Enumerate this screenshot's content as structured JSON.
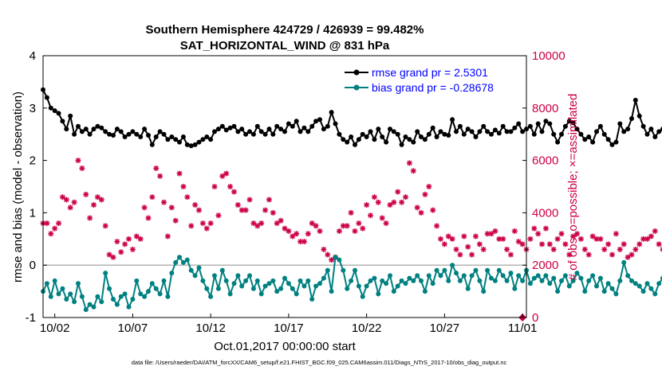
{
  "chart_data": {
    "type": "line",
    "title": "Southern Hemisphere 424729 / 426939 = 99.482%",
    "subtitle": "SAT_HORIZONTAL_WIND @ 831 hPa",
    "xlabel": "Oct.01,2017 00:00:00 start",
    "ylabel_left": "rmse and bias (model - observation)",
    "ylabel_right": "# of obs: o=possible; ×=assimilated",
    "footer": "data file: /Users/raeder/DAI/ATM_forcXX/CAM6_setup/f.e21.FHIST_BGC.f09_025.CAM6assim.011/Diags_NTrS_2017-10/obs_diag_output.nc",
    "x_tick_labels": [
      "10/02",
      "10/07",
      "10/12",
      "10/17",
      "10/22",
      "10/27",
      "11/01"
    ],
    "x_tick_days": [
      2,
      7,
      12,
      17,
      22,
      27,
      32
    ],
    "x_range_days": [
      1.25,
      32.25
    ],
    "y_left_range": [
      -1,
      4
    ],
    "y_left_ticks": [
      "-1",
      "0",
      "1",
      "2",
      "3",
      "4"
    ],
    "y_right_range": [
      0,
      10000
    ],
    "y_right_ticks": [
      "0",
      "2000",
      "4000",
      "6000",
      "8000",
      "10000"
    ],
    "reference_line_y": 0,
    "legend": {
      "placement": "top-right",
      "entries": [
        {
          "label": "rmse grand pr = 2.5301",
          "color": "#000000",
          "marker": "circle"
        },
        {
          "label": "bias grand pr = -0.28678",
          "color": "#008080",
          "marker": "circle"
        }
      ]
    },
    "colors": {
      "rmse": "#000000",
      "bias": "#008080",
      "obs": "#cc0044",
      "zero_line": "#b3b3b3",
      "legend_text": "#0000ff",
      "right_axis": "#cc0044"
    },
    "series": [
      {
        "name": "rmse grand pr = 2.5301",
        "axis": "left",
        "x_start_day": 1.25,
        "x_step_days": 0.25,
        "values": [
          3.35,
          3.2,
          3.0,
          2.95,
          2.9,
          2.75,
          2.6,
          2.85,
          2.5,
          2.65,
          2.55,
          2.6,
          2.5,
          2.6,
          2.65,
          2.62,
          2.55,
          2.5,
          2.48,
          2.6,
          2.55,
          2.45,
          2.5,
          2.55,
          2.5,
          2.45,
          2.6,
          2.48,
          2.3,
          2.45,
          2.55,
          2.5,
          2.4,
          2.45,
          2.4,
          2.35,
          2.45,
          2.3,
          2.28,
          2.3,
          2.35,
          2.4,
          2.45,
          2.4,
          2.55,
          2.6,
          2.65,
          2.58,
          2.62,
          2.65,
          2.55,
          2.6,
          2.5,
          2.55,
          2.5,
          2.65,
          2.55,
          2.5,
          2.6,
          2.5,
          2.65,
          2.6,
          2.55,
          2.7,
          2.65,
          2.75,
          2.55,
          2.62,
          2.55,
          2.65,
          2.75,
          2.78,
          2.6,
          2.65,
          2.92,
          2.7,
          2.5,
          2.4,
          2.35,
          2.45,
          2.3,
          2.4,
          2.5,
          2.45,
          2.55,
          2.4,
          2.6,
          2.45,
          2.35,
          2.6,
          2.55,
          2.5,
          2.3,
          2.45,
          2.4,
          2.35,
          2.55,
          2.45,
          2.4,
          2.5,
          2.62,
          2.45,
          2.55,
          2.5,
          2.48,
          2.78,
          2.55,
          2.65,
          2.5,
          2.6,
          2.55,
          2.45,
          2.55,
          2.65,
          2.55,
          2.5,
          2.58,
          2.52,
          2.65,
          2.55,
          2.55,
          2.62,
          2.7,
          2.55,
          2.6,
          2.65,
          2.5,
          2.7,
          2.55,
          2.75,
          2.7,
          2.5,
          2.35,
          2.5,
          2.65,
          2.75,
          2.72,
          2.6,
          2.5,
          2.4,
          2.45,
          2.35,
          2.55,
          2.65,
          2.5,
          2.4,
          2.3,
          2.35,
          2.7,
          2.55,
          2.6,
          2.8,
          3.15,
          2.85,
          2.65,
          2.5,
          2.6,
          2.45,
          2.55,
          2.6,
          2.55,
          2.4,
          2.5,
          2.6,
          2.45,
          2.65,
          2.5,
          2.55,
          2.7,
          2.55,
          2.5,
          2.6,
          2.5,
          2.8,
          2.6,
          2.65
        ]
      },
      {
        "name": "bias grand pr = -0.28678",
        "axis": "left",
        "x_start_day": 1.25,
        "x_step_days": 0.25,
        "values": [
          -0.5,
          -0.35,
          -0.6,
          -0.3,
          -0.55,
          -0.45,
          -0.65,
          -0.55,
          -0.7,
          -0.35,
          -0.6,
          -0.85,
          -0.75,
          -0.8,
          -0.6,
          -0.7,
          -0.15,
          -0.45,
          -0.65,
          -0.75,
          -0.6,
          -0.55,
          -0.8,
          -0.65,
          -0.3,
          -0.55,
          -0.6,
          -0.5,
          -0.35,
          -0.45,
          -0.55,
          -0.3,
          -0.6,
          -0.15,
          0.05,
          0.15,
          0.05,
          0.1,
          -0.1,
          -0.2,
          -0.05,
          -0.3,
          -0.45,
          -0.6,
          -0.2,
          -0.45,
          -0.1,
          -0.3,
          -0.55,
          -0.35,
          -0.2,
          -0.4,
          -0.3,
          -0.2,
          -0.45,
          -0.3,
          -0.55,
          -0.4,
          -0.35,
          -0.3,
          -0.5,
          -0.45,
          -0.25,
          -0.35,
          -0.45,
          -0.55,
          -0.3,
          -0.4,
          -0.3,
          -0.65,
          -0.4,
          -0.35,
          -0.25,
          -0.1,
          -0.5,
          0.15,
          0.1,
          -0.1,
          -0.45,
          -0.3,
          -0.1,
          -0.4,
          -0.6,
          -0.4,
          -0.3,
          -0.25,
          -0.55,
          -0.3,
          -0.35,
          -0.2,
          -0.5,
          -0.4,
          -0.3,
          -0.35,
          -0.25,
          -0.3,
          -0.2,
          -0.3,
          -0.5,
          -0.2,
          -0.35,
          -0.1,
          -0.2,
          -0.1,
          -0.3,
          0.0,
          -0.15,
          -0.3,
          -0.2,
          -0.45,
          -0.2,
          -0.1,
          -0.3,
          -0.5,
          -0.1,
          -0.25,
          -0.3,
          -0.1,
          -0.2,
          -0.3,
          -0.15,
          -0.45,
          -0.2,
          -0.3,
          -0.1,
          -0.35,
          -0.25,
          -0.2,
          -0.3,
          -0.2,
          -0.35,
          -0.25,
          -0.5,
          -0.3,
          -0.2,
          -0.4,
          -0.3,
          -0.15,
          -0.25,
          -0.5,
          -0.3,
          -0.2,
          -0.4,
          -0.25,
          -0.5,
          -0.35,
          -0.45,
          -0.55,
          -0.3,
          0.05,
          -0.2,
          -0.3,
          -0.35,
          -0.4,
          -0.5,
          -0.35,
          -0.45,
          -0.55,
          -0.35,
          -0.25,
          -0.3,
          -0.55,
          -0.2,
          -0.35,
          -0.3,
          -0.35,
          -0.4,
          -0.7,
          -0.5,
          -0.4
        ]
      },
      {
        "name": "",
        "axis": "right",
        "marker": "asterisk",
        "x_start_day": 1.25,
        "x_step_days": 0.25,
        "values": [
          3600,
          3600,
          3200,
          3400,
          3600,
          4600,
          4500,
          4200,
          4400,
          6000,
          5700,
          4700,
          3800,
          4300,
          4600,
          4500,
          3500,
          2400,
          2300,
          2900,
          2500,
          2800,
          3000,
          2600,
          3100,
          3000,
          4200,
          3800,
          4600,
          5700,
          5400,
          4400,
          3100,
          4200,
          3700,
          5500,
          5000,
          4600,
          3500,
          4300,
          4100,
          3600,
          3400,
          3600,
          5000,
          3900,
          5400,
          5500,
          5000,
          4800,
          4300,
          4100,
          4100,
          4500,
          3600,
          3500,
          3600,
          4100,
          4500,
          4000,
          3600,
          3700,
          3400,
          3300,
          3100,
          3200,
          2900,
          2900,
          3200,
          3600,
          3500,
          3300,
          2600,
          2400,
          2200,
          2300,
          3300,
          3500,
          3500,
          4000,
          3300,
          3600,
          3400,
          4300,
          3900,
          4600,
          4400,
          3800,
          3600,
          4300,
          4400,
          4800,
          4400,
          4600,
          5900,
          5600,
          4200,
          4000,
          4700,
          5000,
          4100,
          3500,
          3000,
          2800,
          3100,
          3000,
          2600,
          2400,
          3100,
          2700,
          2400,
          3100,
          2800,
          2600,
          3200,
          3200,
          3300,
          3000,
          3000,
          2600,
          2400,
          3300,
          2900,
          2800,
          2600,
          3000,
          3400,
          3200,
          2800,
          3400,
          2800,
          2600,
          3000,
          3200,
          2800,
          2400,
          3100,
          3200,
          3000,
          2600,
          2400,
          3100,
          3000,
          3000,
          2600,
          2800,
          2400,
          3200,
          2600,
          2800,
          2300,
          2400,
          2600,
          2800,
          3000,
          3000,
          3100,
          3300,
          2800,
          2600,
          3000,
          3100,
          3100,
          2800,
          2400,
          2900,
          3100,
          2800,
          2600,
          2200,
          2600,
          2800
        ]
      }
    ],
    "extra_points": [
      {
        "x_day": 32.0,
        "y_right": 0,
        "marker": "diamond"
      }
    ]
  }
}
